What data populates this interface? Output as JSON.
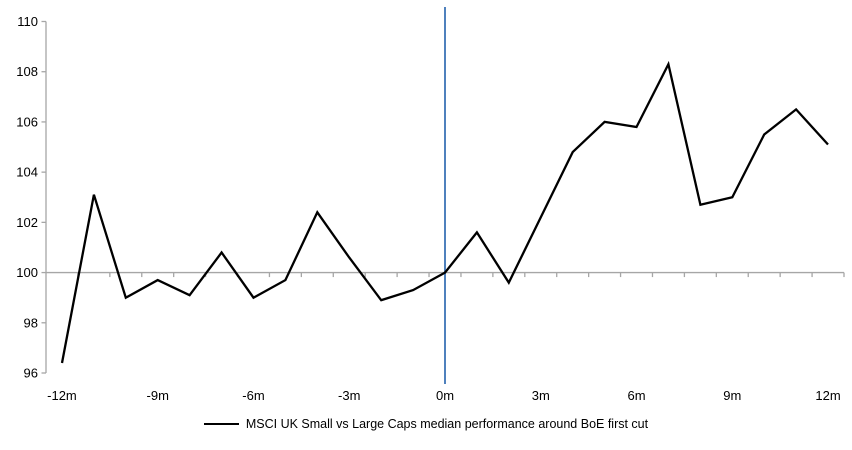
{
  "chart_data": {
    "type": "line",
    "title": "",
    "legend": "MSCI UK Small vs Large Caps median performance around BoE first cut",
    "legend_position": "bottom-center",
    "x": [
      -12,
      -11,
      -10,
      -9,
      -8,
      -7,
      -6,
      -5,
      -4,
      -3,
      -2,
      -1,
      0,
      1,
      2,
      3,
      4,
      5,
      6,
      7,
      8,
      9,
      10,
      11,
      12
    ],
    "series": [
      {
        "name": "MSCI UK Small vs Large Caps median performance around BoE first cut",
        "values": [
          96.4,
          103.1,
          99.0,
          99.7,
          99.1,
          100.8,
          99.0,
          99.7,
          102.4,
          100.6,
          98.9,
          99.3,
          100.0,
          101.6,
          99.6,
          102.2,
          104.8,
          106.0,
          105.8,
          108.3,
          102.7,
          103.0,
          105.5,
          106.5,
          105.1
        ]
      }
    ],
    "xlabel": "",
    "ylabel": "",
    "xlim": [
      -12.5,
      12.5
    ],
    "ylim": [
      96,
      110
    ],
    "x_tick_values": [
      -12,
      -9,
      -6,
      -3,
      0,
      3,
      6,
      9,
      12
    ],
    "x_tick_labels": [
      "-12m",
      "-9m",
      "-6m",
      "-3m",
      "0m",
      "3m",
      "6m",
      "9m",
      "12m"
    ],
    "y_tick_values": [
      96,
      98,
      100,
      102,
      104,
      106,
      108,
      110
    ],
    "y_tick_labels": [
      "96",
      "98",
      "100",
      "102",
      "104",
      "106",
      "108",
      "110"
    ],
    "x_axis_cross_at": 100,
    "event_line_x": 0,
    "grid": false,
    "colors": {
      "series": "#000000",
      "event_line": "#4F81BD",
      "axis": "#A6A6A6",
      "text": "#000000"
    }
  }
}
